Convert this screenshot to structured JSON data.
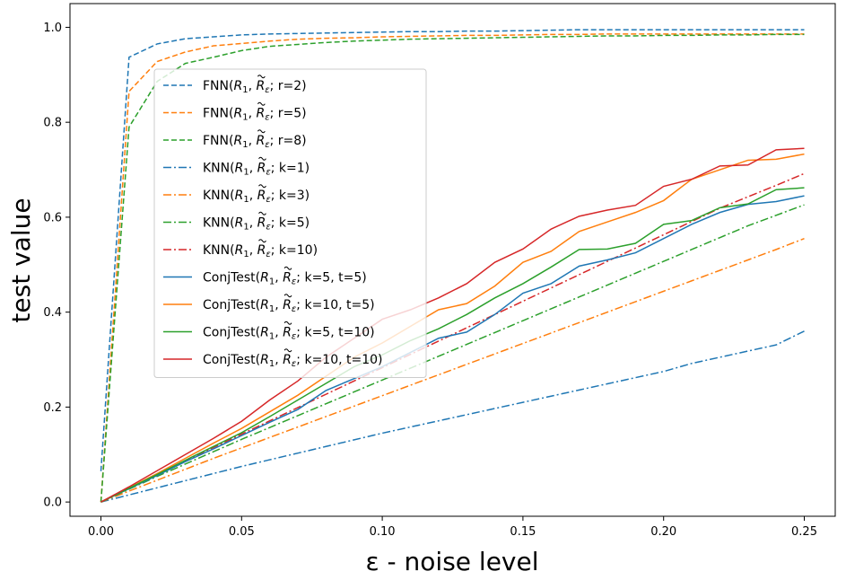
{
  "chart_data": {
    "type": "line",
    "title": "",
    "xlabel": "ε - noise level",
    "ylabel": "test value",
    "xlim": [
      -0.011,
      0.261
    ],
    "ylim": [
      -0.03,
      1.05
    ],
    "xticks": [
      0.0,
      0.05,
      0.1,
      0.15,
      0.2,
      0.25
    ],
    "xtick_labels": [
      "0.00",
      "0.05",
      "0.10",
      "0.15",
      "0.20",
      "0.25"
    ],
    "yticks": [
      0.0,
      0.2,
      0.4,
      0.6,
      0.8,
      1.0
    ],
    "ytick_labels": [
      "0.0",
      "0.2",
      "0.4",
      "0.6",
      "0.8",
      "1.0"
    ],
    "grid": false,
    "legend_position": "upper-left",
    "x": [
      0.0,
      0.01,
      0.02,
      0.03,
      0.04,
      0.05,
      0.06,
      0.07,
      0.08,
      0.09,
      0.1,
      0.11,
      0.12,
      0.13,
      0.14,
      0.15,
      0.16,
      0.17,
      0.18,
      0.19,
      0.2,
      0.21,
      0.22,
      0.23,
      0.24,
      0.25
    ],
    "series": [
      {
        "name_parts": [
          "FNN(",
          "R",
          "1",
          ", ",
          "R",
          "ε",
          "; r=2)"
        ],
        "color": "#1f77b4",
        "dash": "dashed",
        "values": [
          0.065,
          0.937,
          0.965,
          0.976,
          0.98,
          0.984,
          0.986,
          0.987,
          0.988,
          0.989,
          0.99,
          0.991,
          0.991,
          0.992,
          0.992,
          0.993,
          0.994,
          0.995,
          0.995,
          0.995,
          0.995,
          0.995,
          0.995,
          0.995,
          0.995,
          0.995
        ]
      },
      {
        "name_parts": [
          "FNN(",
          "R",
          "1",
          ", ",
          "R",
          "ε",
          "; r=5)"
        ],
        "color": "#ff7f0e",
        "dash": "dashed",
        "values": [
          0.0,
          0.865,
          0.928,
          0.948,
          0.961,
          0.966,
          0.971,
          0.975,
          0.977,
          0.978,
          0.98,
          0.981,
          0.982,
          0.983,
          0.983,
          0.984,
          0.985,
          0.985,
          0.986,
          0.986,
          0.986,
          0.986,
          0.986,
          0.986,
          0.986,
          0.986
        ]
      },
      {
        "name_parts": [
          "FNN(",
          "R",
          "1",
          ", ",
          "R",
          "ε",
          "; r=8)"
        ],
        "color": "#2ca02c",
        "dash": "dashed",
        "values": [
          0.0,
          0.79,
          0.886,
          0.924,
          0.937,
          0.951,
          0.96,
          0.964,
          0.968,
          0.971,
          0.973,
          0.975,
          0.976,
          0.977,
          0.978,
          0.979,
          0.98,
          0.981,
          0.982,
          0.982,
          0.983,
          0.983,
          0.984,
          0.984,
          0.985,
          0.985
        ]
      },
      {
        "name_parts": [
          "KNN(",
          "R",
          "1",
          ", ",
          "R",
          "ε",
          "; k=1)"
        ],
        "color": "#1f77b4",
        "dash": "dashdot",
        "values": [
          0.0,
          0.015,
          0.03,
          0.045,
          0.06,
          0.075,
          0.089,
          0.103,
          0.117,
          0.131,
          0.145,
          0.158,
          0.171,
          0.184,
          0.197,
          0.21,
          0.223,
          0.236,
          0.249,
          0.262,
          0.275,
          0.292,
          0.305,
          0.318,
          0.331,
          0.36
        ]
      },
      {
        "name_parts": [
          "KNN(",
          "R",
          "1",
          ", ",
          "R",
          "ε",
          "; k=3)"
        ],
        "color": "#ff7f0e",
        "dash": "dashdot",
        "values": [
          0.0,
          0.023,
          0.046,
          0.069,
          0.092,
          0.114,
          0.136,
          0.158,
          0.18,
          0.202,
          0.224,
          0.246,
          0.268,
          0.29,
          0.312,
          0.334,
          0.356,
          0.378,
          0.4,
          0.422,
          0.444,
          0.466,
          0.488,
          0.51,
          0.532,
          0.555
        ]
      },
      {
        "name_parts": [
          "KNN(",
          "R",
          "1",
          ", ",
          "R",
          "ε",
          "; k=5)"
        ],
        "color": "#2ca02c",
        "dash": "dashdot",
        "values": [
          0.0,
          0.027,
          0.054,
          0.08,
          0.106,
          0.132,
          0.157,
          0.182,
          0.207,
          0.232,
          0.257,
          0.282,
          0.307,
          0.332,
          0.357,
          0.382,
          0.407,
          0.432,
          0.457,
          0.482,
          0.507,
          0.532,
          0.557,
          0.582,
          0.604,
          0.626
        ]
      },
      {
        "name_parts": [
          "KNN(",
          "R",
          "1",
          ", ",
          "R",
          "ε",
          "; k=10)"
        ],
        "color": "#d62728",
        "dash": "dashdot",
        "values": [
          0.0,
          0.029,
          0.058,
          0.087,
          0.115,
          0.143,
          0.171,
          0.199,
          0.227,
          0.255,
          0.283,
          0.311,
          0.339,
          0.367,
          0.395,
          0.423,
          0.451,
          0.479,
          0.507,
          0.535,
          0.563,
          0.591,
          0.619,
          0.643,
          0.667,
          0.692
        ]
      },
      {
        "name_parts": [
          "ConjTest(",
          "R",
          "1",
          ", ",
          "R",
          "ε",
          "; k=5, t=5)"
        ],
        "color": "#1f77b4",
        "dash": "solid",
        "values": [
          0.0,
          0.028,
          0.056,
          0.085,
          0.112,
          0.14,
          0.168,
          0.195,
          0.235,
          0.26,
          0.285,
          0.315,
          0.345,
          0.358,
          0.395,
          0.44,
          0.46,
          0.497,
          0.51,
          0.525,
          0.555,
          0.585,
          0.61,
          0.627,
          0.633,
          0.645
        ]
      },
      {
        "name_parts": [
          "ConjTest(",
          "R",
          "1",
          ", ",
          "R",
          "ε",
          "; k=10, t=5)"
        ],
        "color": "#ff7f0e",
        "dash": "solid",
        "values": [
          0.0,
          0.03,
          0.06,
          0.092,
          0.124,
          0.155,
          0.19,
          0.225,
          0.265,
          0.305,
          0.335,
          0.37,
          0.405,
          0.418,
          0.455,
          0.505,
          0.528,
          0.57,
          0.59,
          0.61,
          0.635,
          0.68,
          0.7,
          0.72,
          0.722,
          0.733
        ]
      },
      {
        "name_parts": [
          "ConjTest(",
          "R",
          "1",
          ", ",
          "R",
          "ε",
          "; k=5, t=10)"
        ],
        "color": "#2ca02c",
        "dash": "solid",
        "values": [
          0.0,
          0.029,
          0.058,
          0.088,
          0.117,
          0.146,
          0.18,
          0.215,
          0.25,
          0.285,
          0.31,
          0.34,
          0.365,
          0.395,
          0.43,
          0.46,
          0.495,
          0.532,
          0.533,
          0.545,
          0.585,
          0.593,
          0.62,
          0.628,
          0.658,
          0.662
        ]
      },
      {
        "name_parts": [
          "ConjTest(",
          "R",
          "1",
          ", ",
          "R",
          "ε",
          "; k=10, t=10)"
        ],
        "color": "#d62728",
        "dash": "solid",
        "values": [
          0.0,
          0.032,
          0.066,
          0.1,
          0.134,
          0.17,
          0.215,
          0.255,
          0.305,
          0.345,
          0.385,
          0.405,
          0.43,
          0.46,
          0.505,
          0.533,
          0.575,
          0.602,
          0.615,
          0.625,
          0.665,
          0.68,
          0.708,
          0.71,
          0.742,
          0.745
        ]
      }
    ]
  }
}
